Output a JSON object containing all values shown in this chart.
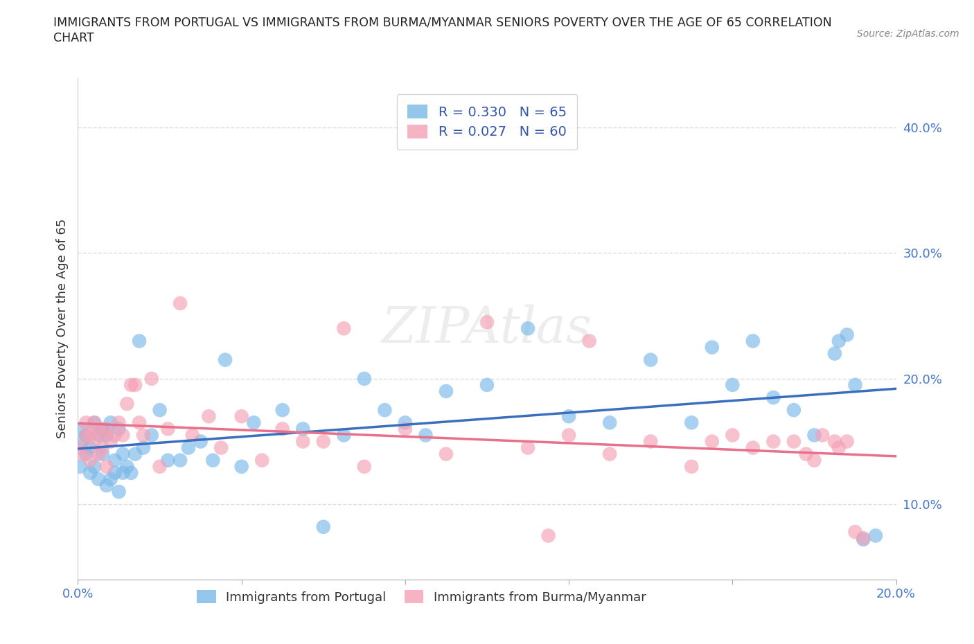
{
  "title_line1": "IMMIGRANTS FROM PORTUGAL VS IMMIGRANTS FROM BURMA/MYANMAR SENIORS POVERTY OVER THE AGE OF 65 CORRELATION",
  "title_line2": "CHART",
  "source_text": "Source: ZipAtlas.com",
  "ylabel": "Seniors Poverty Over the Age of 65",
  "xlim": [
    0.0,
    0.2
  ],
  "ylim": [
    0.04,
    0.44
  ],
  "xticks": [
    0.0,
    0.04,
    0.08,
    0.12,
    0.16,
    0.2
  ],
  "xticklabels": [
    "0.0%",
    "",
    "",
    "",
    "",
    "20.0%"
  ],
  "yticks_right": [
    0.1,
    0.2,
    0.3,
    0.4
  ],
  "yticklabels_right": [
    "10.0%",
    "20.0%",
    "30.0%",
    "40.0%"
  ],
  "color_portugal": "#7ab8e8",
  "color_burma": "#f4a0b5",
  "line_color_portugal": "#3a6fc0",
  "line_color_burma": "#e8708a",
  "R_portugal": 0.33,
  "N_portugal": 65,
  "R_burma": 0.027,
  "N_burma": 60,
  "legend_labels": [
    "Immigrants from Portugal",
    "Immigrants from Burma/Myanmar"
  ],
  "background_color": "#ffffff",
  "grid_color": "#dddddd",
  "watermark": "ZIPAtlas",
  "portugal_scatter_x": [
    0.0005,
    0.001,
    0.001,
    0.002,
    0.002,
    0.003,
    0.003,
    0.004,
    0.004,
    0.005,
    0.005,
    0.006,
    0.006,
    0.007,
    0.007,
    0.008,
    0.008,
    0.009,
    0.009,
    0.01,
    0.01,
    0.011,
    0.011,
    0.012,
    0.013,
    0.014,
    0.015,
    0.016,
    0.018,
    0.02,
    0.022,
    0.025,
    0.027,
    0.03,
    0.033,
    0.036,
    0.04,
    0.043,
    0.05,
    0.055,
    0.06,
    0.065,
    0.07,
    0.075,
    0.08,
    0.085,
    0.09,
    0.1,
    0.11,
    0.12,
    0.13,
    0.14,
    0.15,
    0.155,
    0.16,
    0.165,
    0.17,
    0.175,
    0.18,
    0.185,
    0.186,
    0.188,
    0.19,
    0.192,
    0.195
  ],
  "portugal_scatter_y": [
    0.13,
    0.15,
    0.16,
    0.14,
    0.155,
    0.125,
    0.145,
    0.13,
    0.165,
    0.12,
    0.155,
    0.14,
    0.16,
    0.115,
    0.155,
    0.12,
    0.165,
    0.125,
    0.135,
    0.11,
    0.16,
    0.125,
    0.14,
    0.13,
    0.125,
    0.14,
    0.23,
    0.145,
    0.155,
    0.175,
    0.135,
    0.135,
    0.145,
    0.15,
    0.135,
    0.215,
    0.13,
    0.165,
    0.175,
    0.16,
    0.082,
    0.155,
    0.2,
    0.175,
    0.165,
    0.155,
    0.19,
    0.195,
    0.24,
    0.17,
    0.165,
    0.215,
    0.165,
    0.225,
    0.195,
    0.23,
    0.185,
    0.175,
    0.155,
    0.22,
    0.23,
    0.235,
    0.195,
    0.072,
    0.075
  ],
  "burma_scatter_x": [
    0.0005,
    0.001,
    0.002,
    0.002,
    0.003,
    0.003,
    0.004,
    0.004,
    0.005,
    0.005,
    0.006,
    0.006,
    0.007,
    0.007,
    0.008,
    0.009,
    0.01,
    0.011,
    0.012,
    0.013,
    0.014,
    0.015,
    0.016,
    0.018,
    0.02,
    0.022,
    0.025,
    0.028,
    0.032,
    0.035,
    0.04,
    0.045,
    0.05,
    0.055,
    0.06,
    0.065,
    0.07,
    0.08,
    0.09,
    0.1,
    0.11,
    0.115,
    0.12,
    0.125,
    0.13,
    0.14,
    0.15,
    0.155,
    0.16,
    0.165,
    0.17,
    0.175,
    0.178,
    0.18,
    0.182,
    0.185,
    0.186,
    0.188,
    0.19,
    0.192
  ],
  "burma_scatter_y": [
    0.145,
    0.14,
    0.155,
    0.165,
    0.135,
    0.155,
    0.15,
    0.165,
    0.14,
    0.16,
    0.145,
    0.155,
    0.13,
    0.16,
    0.15,
    0.155,
    0.165,
    0.155,
    0.18,
    0.195,
    0.195,
    0.165,
    0.155,
    0.2,
    0.13,
    0.16,
    0.26,
    0.155,
    0.17,
    0.145,
    0.17,
    0.135,
    0.16,
    0.15,
    0.15,
    0.24,
    0.13,
    0.16,
    0.14,
    0.245,
    0.145,
    0.075,
    0.155,
    0.23,
    0.14,
    0.15,
    0.13,
    0.15,
    0.155,
    0.145,
    0.15,
    0.15,
    0.14,
    0.135,
    0.155,
    0.15,
    0.145,
    0.15,
    0.078,
    0.073
  ]
}
